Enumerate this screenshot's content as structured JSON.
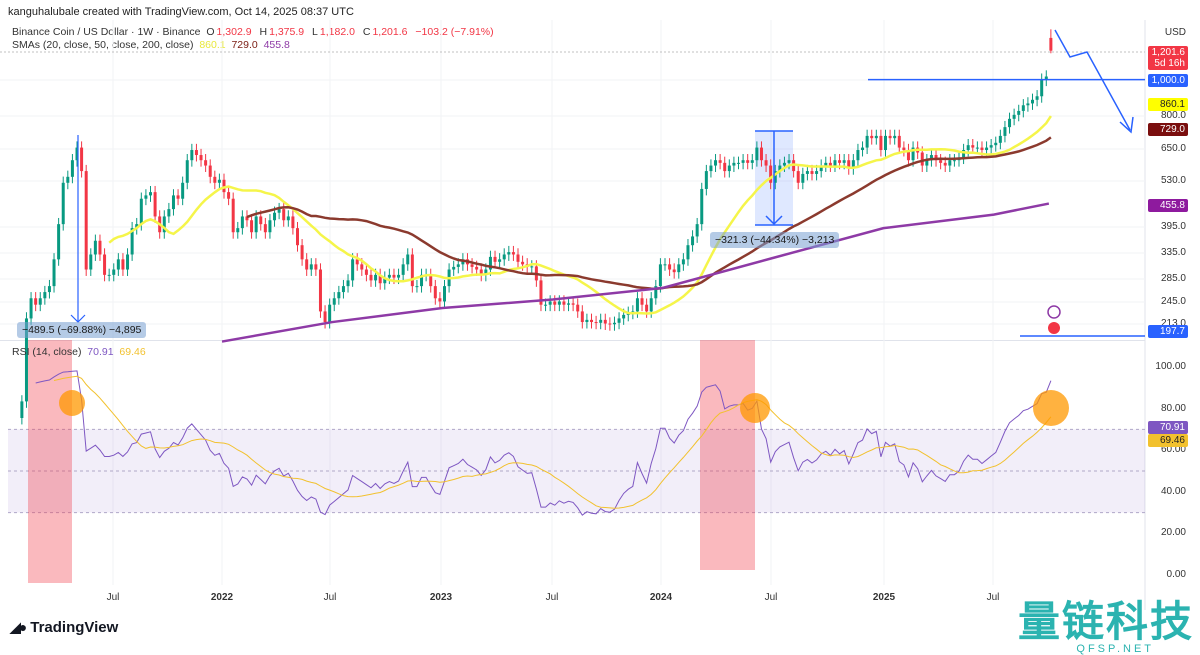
{
  "credit": "kanguhalubale created with TradingView.com, Oct 14, 2025 08:37 UTC",
  "header": {
    "symbol": "Binance Coin / US Dollar · 1W · Binance",
    "o_label": "O",
    "o": "1,302.9",
    "h_label": "H",
    "h": "1,375.9",
    "l_label": "L",
    "l": "1,182.0",
    "c_label": "C",
    "c": "1,201.6",
    "change": "−103.2 (−7.91%)",
    "sma_label": "SMAs (20, close, 50, close, 200, close)",
    "sma20": "860.1",
    "sma50": "729.0",
    "sma200": "455.8"
  },
  "price_axis": {
    "currency": "USD",
    "labels": [
      "800.0",
      "650.0",
      "530.0",
      "395.0",
      "335.0",
      "285.0",
      "245.0",
      "213.0"
    ],
    "badges": {
      "last_price": "1,201.6",
      "countdown": "5d 16h",
      "level_1000": "1,000.0",
      "sma20": "860.1",
      "sma50": "729.0",
      "sma200": "455.8",
      "level_low": "197.7"
    }
  },
  "rsi": {
    "label": "RSI (14, close)",
    "value": "70.91",
    "ma_value": "69.46",
    "axis_labels": [
      "100.00",
      "80.00",
      "60.00",
      "40.00",
      "20.00",
      "0.00"
    ]
  },
  "x_axis": {
    "labels": [
      "Jul",
      "2022",
      "Jul",
      "2023",
      "Jul",
      "2024",
      "Jul",
      "2025",
      "Jul"
    ]
  },
  "annotations": {
    "measure_1": "−489.5 (−69.88%) −4,895",
    "measure_2": "−321.3 (−44.34%) −3,213"
  },
  "branding": {
    "logo": "TradingView",
    "watermark_cn": "量链科技",
    "watermark_en": "QFSP.NET"
  },
  "colors": {
    "up": "#089981",
    "down": "#f23645",
    "sma20": "#f5f54a",
    "sma50": "#8b3a2e",
    "sma200": "#8e3aa6",
    "rsi": "#7e57c2",
    "rsi_ma": "#f2c12e",
    "drawing": "#2962ff"
  },
  "chart_data": {
    "type": "candlestick",
    "scale": "log",
    "interval": "1W",
    "start": "2021-02",
    "weeks_per_month": 4,
    "closes": [
      130,
      220,
      250,
      240,
      250,
      260,
      270,
      320,
      400,
      520,
      540,
      600,
      650,
      560,
      300,
      330,
      360,
      330,
      290,
      290,
      300,
      320,
      300,
      330,
      390,
      400,
      470,
      480,
      490,
      420,
      380,
      420,
      440,
      480,
      470,
      520,
      600,
      640,
      620,
      600,
      580,
      540,
      520,
      530,
      490,
      470,
      380,
      390,
      420,
      410,
      380,
      420,
      400,
      380,
      410,
      430,
      440,
      410,
      420,
      390,
      350,
      320,
      300,
      310,
      300,
      230,
      215,
      240,
      250,
      260,
      270,
      280,
      320,
      310,
      300,
      290,
      280,
      290,
      275,
      285,
      290,
      285,
      290,
      310,
      330,
      270,
      270,
      290,
      290,
      270,
      250,
      245,
      270,
      300,
      305,
      310,
      320,
      310,
      305,
      300,
      290,
      300,
      325,
      315,
      320,
      330,
      335,
      330,
      315,
      310,
      305,
      306,
      280,
      240,
      240,
      245,
      240,
      245,
      240,
      242,
      240,
      230,
      215,
      218,
      215,
      214,
      218,
      213,
      212,
      214,
      220,
      225,
      228,
      230,
      250,
      240,
      230,
      250,
      270,
      310,
      310,
      300,
      295,
      310,
      320,
      350,
      370,
      400,
      500,
      560,
      580,
      600,
      590,
      560,
      580,
      590,
      590,
      600,
      590,
      600,
      650,
      600,
      580,
      520,
      560,
      580,
      590,
      600,
      560,
      520,
      550,
      560,
      550,
      560,
      580,
      590,
      580,
      600,
      590,
      600,
      570,
      600,
      640,
      650,
      700,
      690,
      700,
      640,
      700,
      690,
      700,
      650,
      640,
      600,
      650,
      630,
      580,
      600,
      620,
      600,
      590,
      580,
      600,
      600,
      610,
      640,
      660,
      650,
      650,
      640,
      650,
      660,
      670,
      700,
      740,
      780,
      800,
      820,
      850,
      860,
      880,
      900,
      1000,
      1020,
      1302.9
    ],
    "latest_bar": {
      "open": 1302.9,
      "high": 1375.9,
      "low": 1182.0,
      "close": 1201.6
    },
    "sma200_points": [
      [
        "2022-01",
        190
      ],
      [
        "2022-07",
        215
      ],
      [
        "2023-01",
        235
      ],
      [
        "2023-07",
        248
      ],
      [
        "2024-01",
        267
      ],
      [
        "2024-07",
        323
      ],
      [
        "2025-01",
        390
      ],
      [
        "2025-07",
        425
      ],
      [
        "2025-10",
        455.8
      ]
    ],
    "horizontal_levels": [
      1000.0,
      197.7
    ],
    "rsi_bands": [
      70,
      50,
      30
    ],
    "rsi_range": [
      0,
      100
    ]
  }
}
